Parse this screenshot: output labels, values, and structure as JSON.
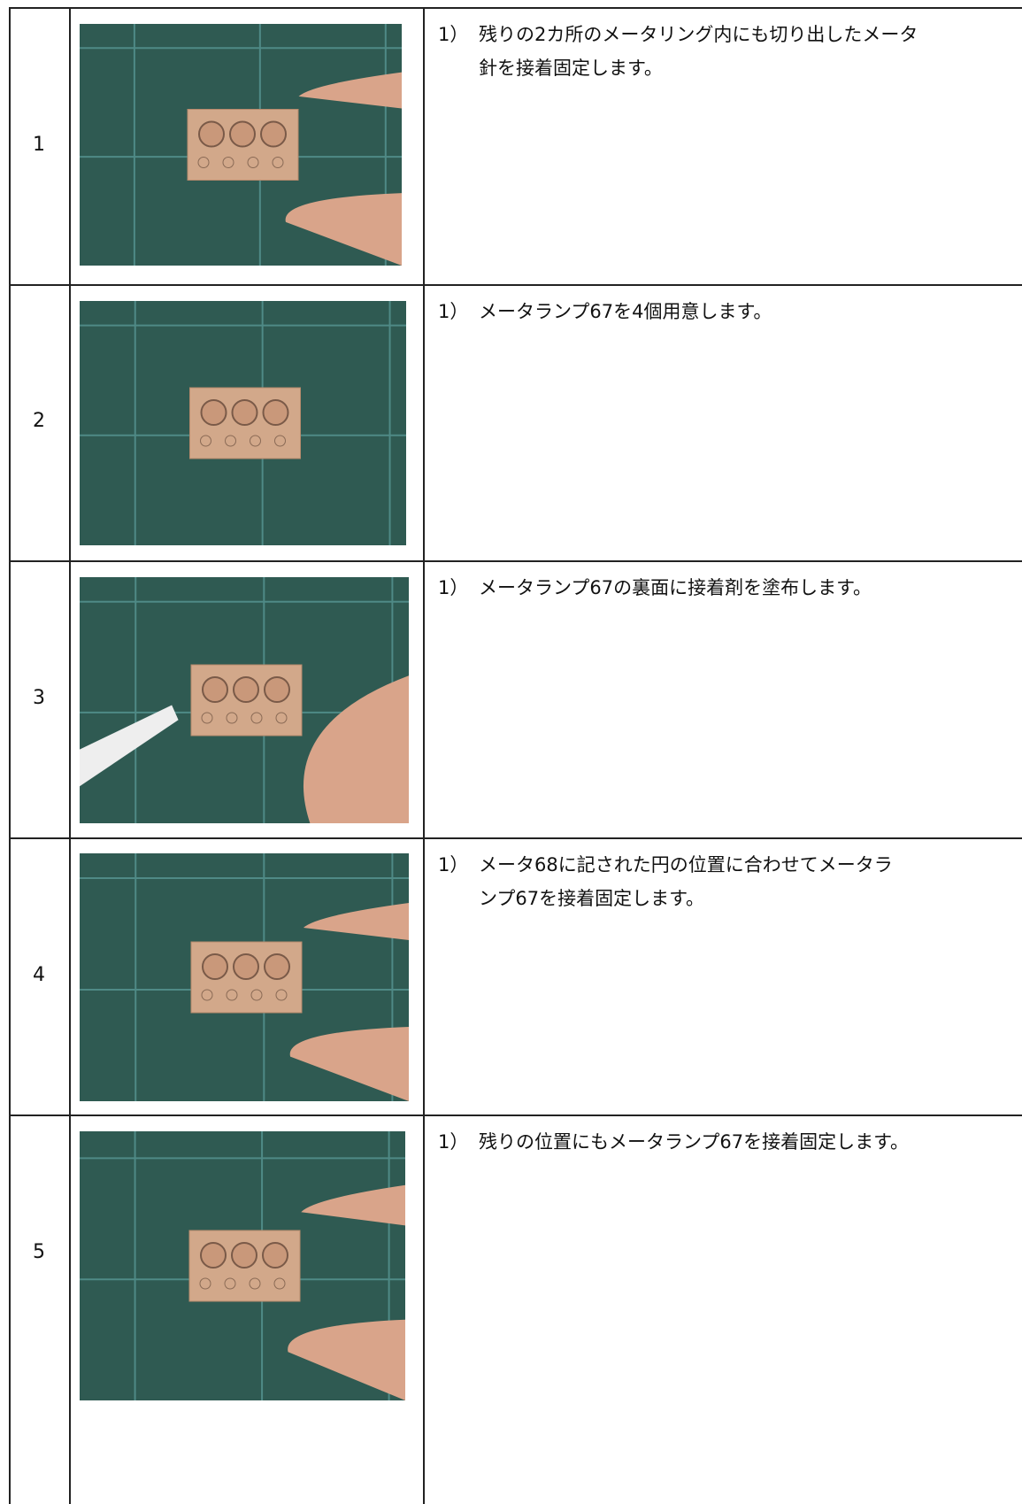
{
  "table": {
    "rows": [
      {
        "number": "1",
        "marker": "1）",
        "lines": [
          "残りの2カ所のメータリング内にも切り出したメータ",
          "針を接着固定します。"
        ]
      },
      {
        "number": "2",
        "marker": "1）",
        "lines": [
          "メータランプ67を4個用意します。"
        ]
      },
      {
        "number": "3",
        "marker": "1）",
        "lines": [
          "メータランプ67の裏面に接着剤を塗布します。"
        ]
      },
      {
        "number": "4",
        "marker": "1）",
        "lines": [
          "メータ68に記された円の位置に合わせてメータラ",
          "ンプ67を接着固定します。"
        ]
      },
      {
        "number": "5",
        "marker": "1）",
        "lines": [
          "残りの位置にもメータランプ67を接着固定します。"
        ]
      }
    ]
  }
}
